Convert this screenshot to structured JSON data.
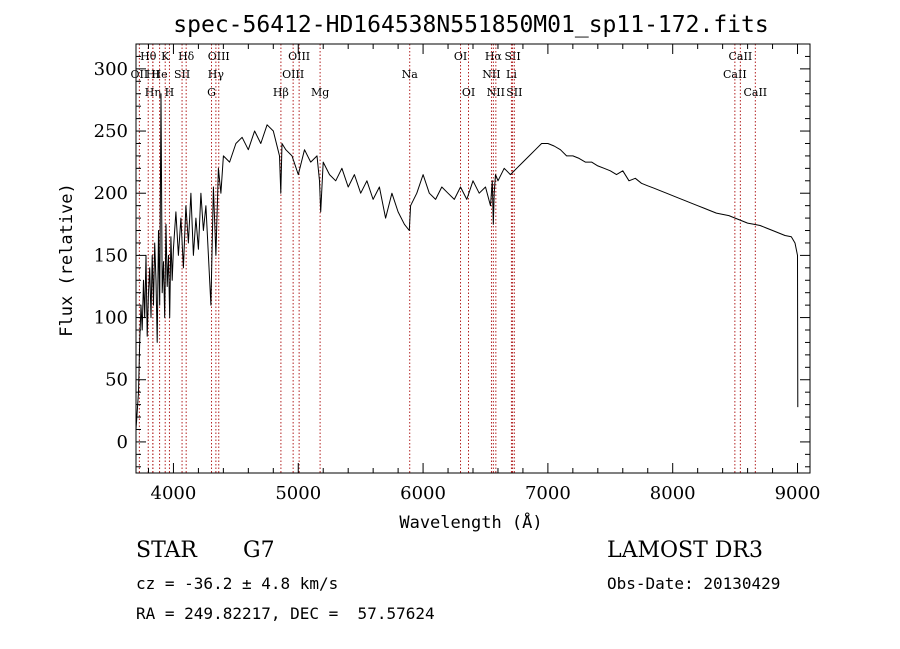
{
  "chart_data": {
    "type": "line",
    "title": "spec-56412-HD164538N551850M01_sp11-172.fits",
    "xlabel": "Wavelength (Å)",
    "ylabel": "Flux (relative)",
    "xlim": [
      3700,
      9100
    ],
    "ylim": [
      -25,
      320
    ],
    "xticks": [
      4000,
      5000,
      6000,
      7000,
      8000,
      9000
    ],
    "yticks": [
      0,
      50,
      100,
      150,
      200,
      250,
      300
    ],
    "series": [
      {
        "name": "flux",
        "x": [
          3700,
          3720,
          3730,
          3740,
          3750,
          3760,
          3770,
          3780,
          3790,
          3800,
          3810,
          3820,
          3830,
          3840,
          3850,
          3860,
          3870,
          3880,
          3890,
          3900,
          3910,
          3920,
          3930,
          3940,
          3950,
          3960,
          3970,
          3980,
          3990,
          4000,
          4020,
          4040,
          4060,
          4080,
          4100,
          4120,
          4140,
          4160,
          4180,
          4200,
          4220,
          4240,
          4260,
          4280,
          4300,
          4320,
          4340,
          4360,
          4380,
          4400,
          4450,
          4500,
          4550,
          4600,
          4650,
          4700,
          4750,
          4800,
          4850,
          4860,
          4870,
          4900,
          4950,
          5000,
          5050,
          5100,
          5150,
          5170,
          5180,
          5200,
          5250,
          5300,
          5350,
          5400,
          5450,
          5500,
          5550,
          5600,
          5650,
          5700,
          5750,
          5800,
          5850,
          5890,
          5900,
          5950,
          6000,
          6050,
          6100,
          6150,
          6200,
          6250,
          6300,
          6350,
          6400,
          6450,
          6500,
          6540,
          6555,
          6563,
          6570,
          6580,
          6600,
          6650,
          6700,
          6750,
          6800,
          6850,
          6900,
          6950,
          7000,
          7050,
          7100,
          7150,
          7200,
          7250,
          7300,
          7350,
          7400,
          7450,
          7500,
          7550,
          7600,
          7650,
          7700,
          7750,
          7800,
          7850,
          7900,
          7950,
          8000,
          8050,
          8100,
          8150,
          8200,
          8250,
          8300,
          8350,
          8400,
          8450,
          8500,
          8550,
          8600,
          8650,
          8700,
          8750,
          8800,
          8850,
          8900,
          8950,
          8980,
          9000,
          9002
        ],
        "y": [
          10,
          40,
          80,
          110,
          90,
          130,
          100,
          150,
          85,
          120,
          140,
          100,
          150,
          110,
          160,
          130,
          80,
          170,
          110,
          280,
          120,
          145,
          100,
          175,
          125,
          150,
          100,
          165,
          130,
          155,
          185,
          150,
          180,
          140,
          190,
          160,
          200,
          150,
          180,
          155,
          200,
          170,
          190,
          150,
          110,
          205,
          150,
          220,
          200,
          230,
          225,
          240,
          245,
          235,
          250,
          240,
          255,
          250,
          230,
          200,
          240,
          235,
          230,
          215,
          235,
          225,
          230,
          210,
          185,
          225,
          215,
          210,
          220,
          205,
          215,
          200,
          210,
          195,
          205,
          180,
          200,
          185,
          175,
          170,
          190,
          200,
          215,
          200,
          195,
          205,
          200,
          195,
          205,
          195,
          210,
          200,
          205,
          190,
          210,
          175,
          200,
          215,
          210,
          220,
          215,
          220,
          225,
          230,
          235,
          240,
          240,
          238,
          235,
          230,
          230,
          228,
          225,
          225,
          222,
          220,
          218,
          215,
          218,
          210,
          212,
          208,
          206,
          204,
          202,
          200,
          198,
          196,
          194,
          192,
          190,
          188,
          186,
          184,
          183,
          182,
          180,
          178,
          176,
          175,
          174,
          172,
          170,
          168,
          166,
          165,
          160,
          150,
          28
        ]
      }
    ],
    "line_marks": [
      {
        "label": "OII",
        "w": 3727,
        "row": 1
      },
      {
        "label": "Hθ",
        "w": 3798,
        "row": 0
      },
      {
        "label": "HI",
        "w": 3835,
        "row": 1
      },
      {
        "label": "Hη",
        "w": 3835,
        "row": 2
      },
      {
        "label": "K",
        "w": 3934,
        "row": 0
      },
      {
        "label": "H",
        "w": 3968,
        "row": 2
      },
      {
        "label": "He",
        "w": 3889,
        "row": 1
      },
      {
        "label": "Hδ",
        "w": 4102,
        "row": 0
      },
      {
        "label": "SII",
        "w": 4069,
        "row": 1
      },
      {
        "label": "OIII",
        "w": 4363,
        "row": 0
      },
      {
        "label": "Hγ",
        "w": 4340,
        "row": 1
      },
      {
        "label": "G",
        "w": 4305,
        "row": 2
      },
      {
        "label": "Hβ",
        "w": 4861,
        "row": 2
      },
      {
        "label": "OIII",
        "w": 5007,
        "row": 0
      },
      {
        "label": "OIII",
        "w": 4959,
        "row": 1
      },
      {
        "label": "Mg",
        "w": 5175,
        "row": 2
      },
      {
        "label": "Na",
        "w": 5893,
        "row": 1
      },
      {
        "label": "OI",
        "w": 6300,
        "row": 0
      },
      {
        "label": "OI",
        "w": 6364,
        "row": 2
      },
      {
        "label": "Hα",
        "w": 6563,
        "row": 0
      },
      {
        "label": "NII",
        "w": 6548,
        "row": 1
      },
      {
        "label": "NII",
        "w": 6583,
        "row": 2
      },
      {
        "label": "SII",
        "w": 6717,
        "row": 0
      },
      {
        "label": "Li",
        "w": 6708,
        "row": 1
      },
      {
        "label": "SII",
        "w": 6731,
        "row": 2
      },
      {
        "label": "CaII",
        "w": 8542,
        "row": 0
      },
      {
        "label": "CaII",
        "w": 8498,
        "row": 1
      },
      {
        "label": "CaII",
        "w": 8662,
        "row": 2
      }
    ]
  },
  "info": {
    "class_label": "STAR",
    "subclass": "G7",
    "cz": "cz = -36.2 ± 4.8 km/s",
    "coords": "RA = 249.82217, DEC =  57.57624",
    "survey": "LAMOST DR3",
    "obs_date": "Obs-Date: 20130429"
  },
  "colors": {
    "line_mark": "#b22222",
    "spectrum": "#000000"
  }
}
